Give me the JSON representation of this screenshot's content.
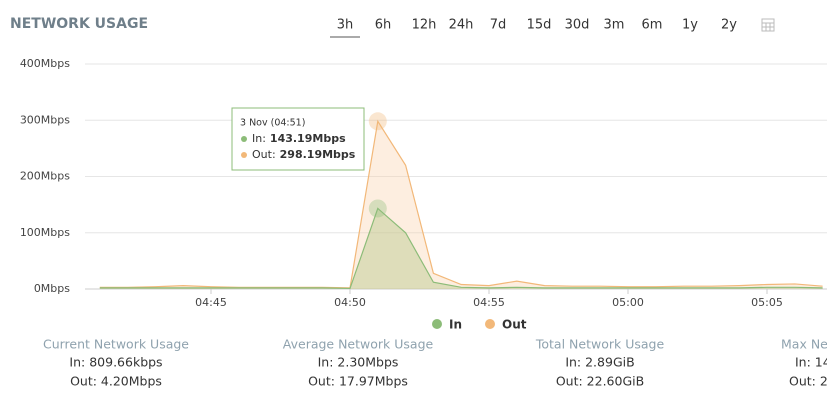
{
  "header": {
    "title": "NETWORK USAGE",
    "ranges": [
      "3h",
      "6h",
      "12h",
      "24h",
      "7d",
      "15d",
      "30d",
      "3m",
      "6m",
      "1y",
      "2y"
    ]
  },
  "chart_data": {
    "type": "area",
    "x": [
      "04:41",
      "04:42",
      "04:43",
      "04:44",
      "04:45",
      "04:46",
      "04:47",
      "04:48",
      "04:49",
      "04:50",
      "04:51",
      "04:52",
      "04:53",
      "04:54",
      "04:55",
      "04:56",
      "04:57",
      "04:58",
      "04:59",
      "05:00",
      "05:01",
      "05:02",
      "05:03",
      "05:04",
      "05:05",
      "05:06",
      "05:07"
    ],
    "xlim": [
      "04:40",
      "05:07"
    ],
    "xticks": [
      "04:45",
      "04:50",
      "04:55",
      "05:00",
      "05:05"
    ],
    "ylim": [
      0,
      400
    ],
    "yticks": [
      {
        "value": 0,
        "label": "0Mbps"
      },
      {
        "value": 100,
        "label": "100Mbps"
      },
      {
        "value": 200,
        "label": "200Mbps"
      },
      {
        "value": 300,
        "label": "300Mbps"
      },
      {
        "value": 400,
        "label": "400Mbps"
      }
    ],
    "grid": true,
    "series": [
      {
        "name": "Out",
        "color": "#f2b879",
        "values": [
          3,
          3,
          4,
          6,
          4,
          3,
          3,
          3,
          3,
          2,
          298.19,
          220,
          28,
          8,
          6,
          14,
          6,
          5,
          5,
          4,
          4,
          5,
          5,
          6,
          8,
          9,
          5
        ]
      },
      {
        "name": "In",
        "color": "#8cbc78",
        "values": [
          2,
          2,
          2,
          2,
          2,
          2,
          2,
          2,
          2,
          1,
          143.19,
          100,
          12,
          3,
          2,
          3,
          2,
          2,
          2,
          2,
          2,
          2,
          2,
          2,
          3,
          3,
          2
        ]
      }
    ],
    "tooltip": {
      "title": "3 Nov (04:51)",
      "items": [
        {
          "label": "In:",
          "value": "143.19Mbps"
        },
        {
          "label": "Out:",
          "value": "298.19Mbps"
        }
      ]
    }
  },
  "stats": [
    {
      "title": "Current Network Usage",
      "in": "In: 809.66kbps",
      "out": "Out: 4.20Mbps"
    },
    {
      "title": "Average Network Usage",
      "in": "In: 2.30Mbps",
      "out": "Out: 17.97Mbps"
    },
    {
      "title": "Total Network Usage",
      "in": "In: 2.89GiB",
      "out": "Out: 22.60GiB"
    },
    {
      "title": "Max Ne",
      "in": "In: 14",
      "out": "Out: 2"
    }
  ]
}
